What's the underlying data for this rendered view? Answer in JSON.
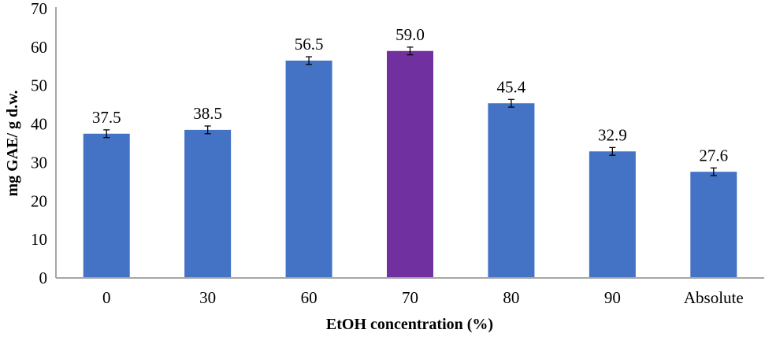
{
  "chart_data": {
    "type": "bar",
    "title": "",
    "xlabel": "EtOH concentration (%)",
    "ylabel": "mg GAE/ g d.w.",
    "categories": [
      "0",
      "30",
      "60",
      "70",
      "80",
      "90",
      "Absolute"
    ],
    "values": [
      37.5,
      38.5,
      56.5,
      59.0,
      45.4,
      32.9,
      27.6
    ],
    "value_labels": [
      "37.5",
      "38.5",
      "56.5",
      "59.0",
      "45.4",
      "32.9",
      "27.6"
    ],
    "error": [
      1.0,
      1.0,
      1.0,
      1.0,
      1.0,
      1.0,
      1.0
    ],
    "ylim": [
      0,
      70
    ],
    "yticks": [
      "0",
      "10",
      "20",
      "30",
      "40",
      "50",
      "60",
      "70"
    ],
    "grid": false,
    "colors": [
      "#4472C4",
      "#4472C4",
      "#4472C4",
      "#7030A0",
      "#4472C4",
      "#4472C4",
      "#4472C4"
    ],
    "axis_color": "#A6A6A6"
  }
}
